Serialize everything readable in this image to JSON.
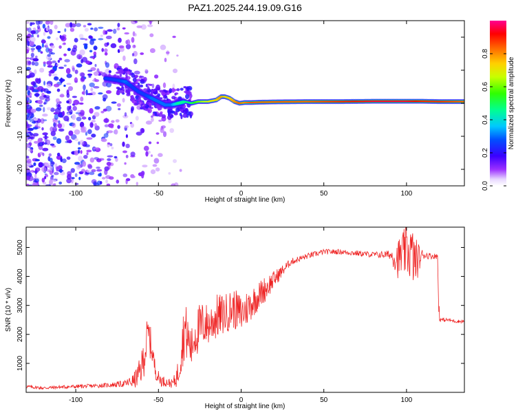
{
  "title": "PAZ1.2025.244.19.09.G16",
  "chart_data": [
    {
      "type": "heatmap",
      "name": "spectrogram",
      "xlabel": "Height of straight line (km)",
      "ylabel": "Frequency (Hz)",
      "xlim": [
        -130,
        135
      ],
      "ylim": [
        -25,
        25
      ],
      "xticks": [
        -100,
        -50,
        0,
        50,
        100
      ],
      "xtick_labels": [
        "-100",
        "-50",
        "0",
        "50",
        "100"
      ],
      "yticks": [
        -20,
        -10,
        0,
        10,
        20
      ],
      "ytick_labels": [
        "-20",
        "-10",
        "0",
        "10",
        "20"
      ],
      "ridge": {
        "height_km": [
          -82,
          -75,
          -70,
          -66,
          -62,
          -58,
          -54,
          -50,
          -46,
          -42,
          -38,
          -34,
          -30,
          -26,
          -20,
          -15,
          -12,
          -10,
          -7,
          -4,
          -1,
          2,
          6,
          10,
          20,
          40,
          60,
          80,
          100,
          110,
          120,
          135
        ],
        "freq_hz": [
          7.5,
          7,
          6.5,
          5,
          3.5,
          2.5,
          1.5,
          0.5,
          -0.5,
          -0.5,
          0,
          0.5,
          0,
          0.5,
          0.5,
          1,
          2,
          2,
          1.5,
          0.5,
          0,
          0.2,
          0.2,
          0.3,
          0.4,
          0.5,
          0.5,
          0.6,
          0.6,
          0.6,
          0.5,
          0.5
        ],
        "amplitude": [
          0.25,
          0.25,
          0.3,
          0.25,
          0.25,
          0.25,
          0.3,
          0.3,
          0.3,
          0.3,
          0.45,
          0.45,
          0.5,
          0.6,
          0.7,
          0.75,
          0.8,
          0.75,
          0.75,
          0.8,
          0.85,
          0.8,
          0.85,
          0.85,
          0.85,
          0.85,
          0.9,
          0.95,
          0.95,
          0.9,
          0.9,
          0.85
        ]
      },
      "noise_region_km": [
        -130,
        -45
      ],
      "colorbar": {
        "label": "Normalized spectral amplitude",
        "range": [
          0,
          1
        ],
        "ticks": [
          0.0,
          0.2,
          0.4,
          0.6,
          0.8
        ],
        "tick_labels": [
          "0.0",
          "0.2",
          "0.4",
          "0.6",
          "0.8"
        ]
      }
    },
    {
      "type": "line",
      "name": "snr",
      "xlabel": "Height of straight line (km)",
      "ylabel": "SNR (10 * v/v)",
      "xlim": [
        -130,
        135
      ],
      "ylim": [
        0,
        5700
      ],
      "xticks": [
        -100,
        -50,
        0,
        50,
        100
      ],
      "xtick_labels": [
        "-100",
        "-50",
        "0",
        "50",
        "100"
      ],
      "yticks": [
        1000,
        2000,
        3000,
        4000,
        5000
      ],
      "ytick_labels": [
        "1000",
        "2000",
        "3000",
        "4000",
        "5000"
      ],
      "color": "#ee2222",
      "series": [
        {
          "name": "SNR",
          "x": [
            -130,
            -120,
            -110,
            -100,
            -90,
            -80,
            -70,
            -65,
            -62,
            -60,
            -58,
            -56,
            -54,
            -52,
            -50,
            -48,
            -45,
            -42,
            -40,
            -38,
            -36,
            -34,
            -32,
            -30,
            -28,
            -25,
            -22,
            -20,
            -15,
            -10,
            -5,
            0,
            5,
            10,
            15,
            20,
            25,
            30,
            40,
            50,
            60,
            70,
            80,
            90,
            95,
            100,
            103,
            105,
            110,
            115,
            119,
            120,
            125,
            130,
            135
          ],
          "y": [
            200,
            150,
            180,
            200,
            220,
            250,
            300,
            400,
            600,
            900,
            1500,
            2000,
            1500,
            800,
            500,
            400,
            350,
            300,
            400,
            700,
            1600,
            2200,
            1800,
            1500,
            2000,
            2200,
            2400,
            2300,
            2600,
            2700,
            2900,
            2700,
            3000,
            3300,
            3600,
            3900,
            4200,
            4500,
            4700,
            4850,
            4850,
            4800,
            4750,
            4750,
            4600,
            4900,
            4800,
            4500,
            4750,
            4700,
            4700,
            2500,
            2500,
            2450,
            2450
          ],
          "jitter": [
            60,
            60,
            60,
            70,
            70,
            80,
            120,
            250,
            450,
            600,
            800,
            700,
            500,
            300,
            250,
            200,
            150,
            150,
            250,
            500,
            900,
            1000,
            900,
            700,
            800,
            900,
            800,
            700,
            800,
            700,
            700,
            700,
            600,
            500,
            450,
            300,
            200,
            120,
            100,
            90,
            90,
            100,
            100,
            150,
            700,
            900,
            1000,
            900,
            150,
            100,
            100,
            70,
            60,
            60,
            60
          ]
        }
      ]
    }
  ]
}
